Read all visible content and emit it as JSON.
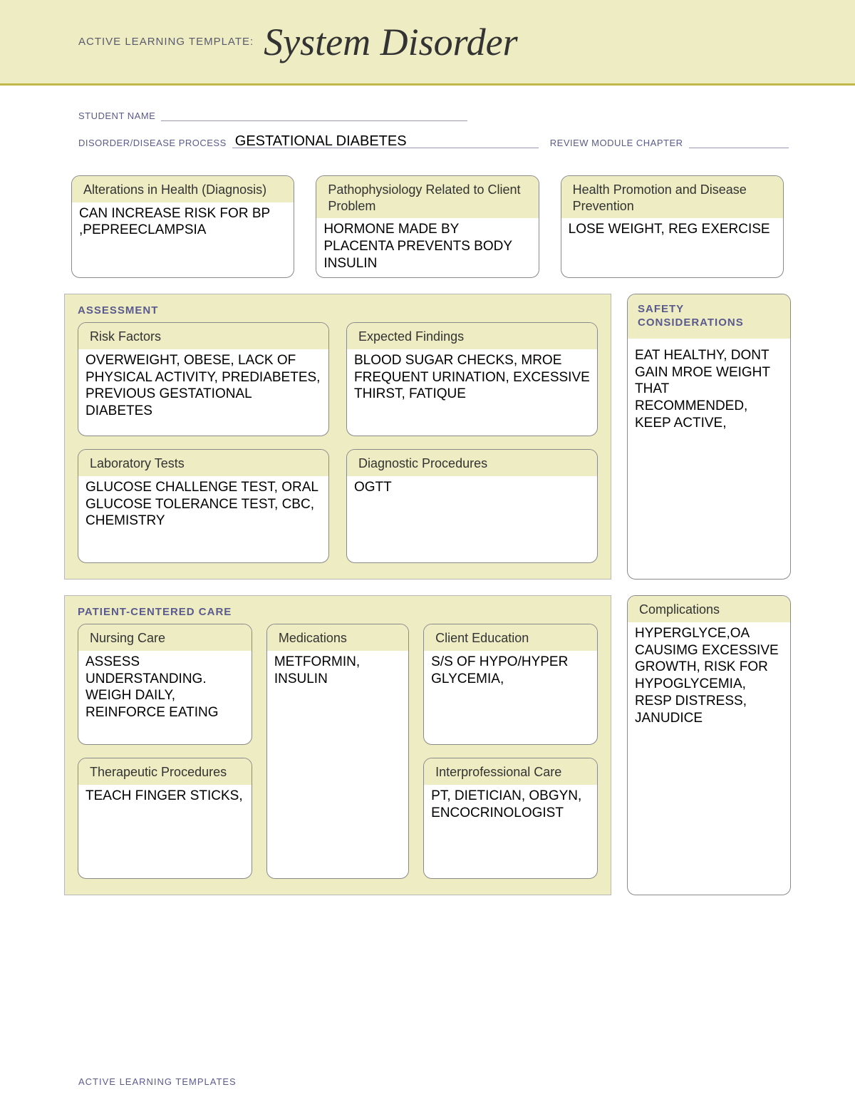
{
  "colors": {
    "band_bg": "#eeecc2",
    "band_rule": "#c2b84a",
    "panel_bg": "#eeecc2",
    "card_border": "#8a8a8a",
    "label_color": "#5a5a8e",
    "text_color": "#000000",
    "page_bg": "#ffffff"
  },
  "header": {
    "prefix": "ACTIVE LEARNING TEMPLATE:",
    "title": "System Disorder"
  },
  "meta": {
    "student_name_label": "STUDENT NAME",
    "student_name_value": "",
    "disorder_label": "DISORDER/DISEASE PROCESS",
    "disorder_value": "GESTATIONAL DIABETES",
    "review_label": "REVIEW MODULE CHAPTER",
    "review_value": ""
  },
  "top": {
    "alterations": {
      "title": "Alterations in Health (Diagnosis)",
      "body": "CAN INCREASE RISK FOR BP ,PEPREECLAMPSIA"
    },
    "patho": {
      "title": "Pathophysiology Related to Client Problem",
      "body": "HORMONE MADE BY PLACENTA PREVENTS BODY INSULIN"
    },
    "promo": {
      "title": "Health Promotion and Disease Prevention",
      "body": "LOSE WEIGHT, REG EXERCISE"
    }
  },
  "assessment": {
    "panel_title": "ASSESSMENT",
    "risk": {
      "title": "Risk Factors",
      "body": "OVERWEIGHT, OBESE, LACK OF PHYSICAL ACTIVITY, PREDIABETES, PREVIOUS GESTATIONAL DIABETES"
    },
    "findings": {
      "title": "Expected Findings",
      "body": "BLOOD SUGAR CHECKS, MROE FREQUENT URINATION, EXCESSIVE THIRST, FATIQUE"
    },
    "labs": {
      "title": "Laboratory Tests",
      "body": "GLUCOSE CHALLENGE TEST, ORAL GLUCOSE TOLERANCE TEST, CBC, CHEMISTRY"
    },
    "diag": {
      "title": "Diagnostic Procedures",
      "body": "OGTT"
    }
  },
  "safety": {
    "title": "SAFETY CONSIDERATIONS",
    "body": "EAT HEALTHY, DONT GAIN MROE WEIGHT THAT RECOMMENDED, KEEP ACTIVE,"
  },
  "pcc": {
    "panel_title": "PATIENT-CENTERED CARE",
    "nursing": {
      "title": "Nursing Care",
      "body": "ASSESS UNDERSTANDING. WEIGH DAILY, REINFORCE EATING"
    },
    "meds": {
      "title": "Medications",
      "body": "METFORMIN, INSULIN"
    },
    "edu": {
      "title": "Client Education",
      "body": "S/S OF HYPO/HYPER GLYCEMIA,"
    },
    "thera": {
      "title": "Therapeutic Procedures",
      "body": "TEACH FINGER STICKS,"
    },
    "inter": {
      "title": "Interprofessional Care",
      "body": "PT, DIETICIAN, OBGYN, ENCOCRINOLOGIST"
    }
  },
  "complications": {
    "title": "Complications",
    "body": "HYPERGLYCE,OA CAUSIMG EXCESSIVE GROWTH, RISK FOR HYPOGLYCEMIA, RESP DISTRESS, JANUDICE"
  },
  "footer": "ACTIVE LEARNING TEMPLATES"
}
